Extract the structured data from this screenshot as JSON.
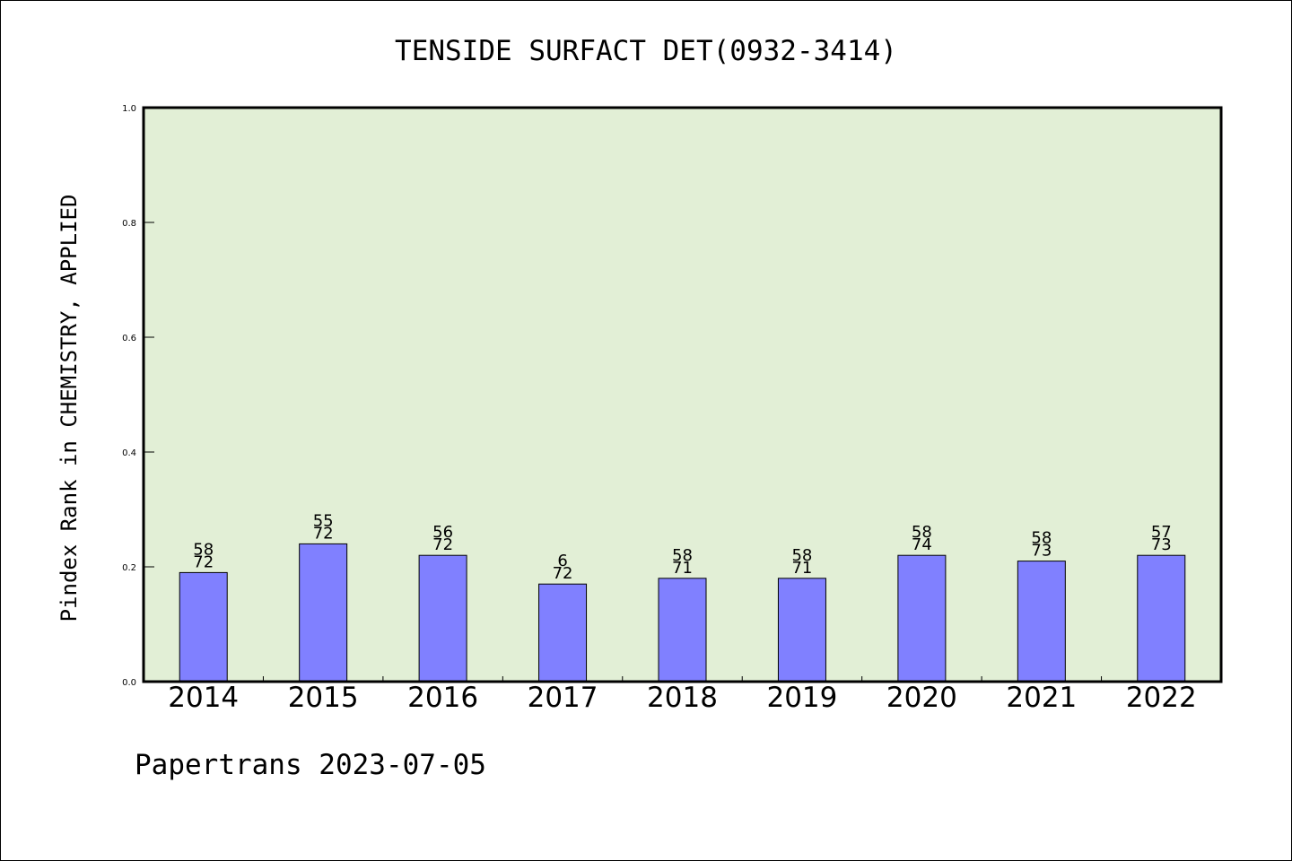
{
  "chart_data": {
    "type": "bar",
    "title": "TENSIDE SURFACT DET(0932-3414)",
    "ylabel": "Pindex Rank in CHEMISTRY, APPLIED",
    "xlabel": "",
    "ylim": [
      0,
      1.0
    ],
    "yticks": [
      "0.0",
      "0.2",
      "0.4",
      "0.6",
      "0.8",
      "1.0"
    ],
    "categories": [
      "2014",
      "2015",
      "2016",
      "2017",
      "2018",
      "2019",
      "2020",
      "2021",
      "2022"
    ],
    "values": [
      0.19,
      0.24,
      0.22,
      0.17,
      0.18,
      0.18,
      0.22,
      0.21,
      0.22
    ],
    "labels_top": [
      "58",
      "55",
      "56",
      "6",
      "58",
      "58",
      "58",
      "58",
      "57"
    ],
    "labels_bottom": [
      "72",
      "72",
      "72",
      "72",
      "71",
      "71",
      "74",
      "73",
      "73"
    ],
    "grid": false,
    "colors": {
      "plot_bg": "#e2efd6",
      "bar": "#8080ff"
    }
  },
  "footer": "Papertrans 2023-07-05"
}
